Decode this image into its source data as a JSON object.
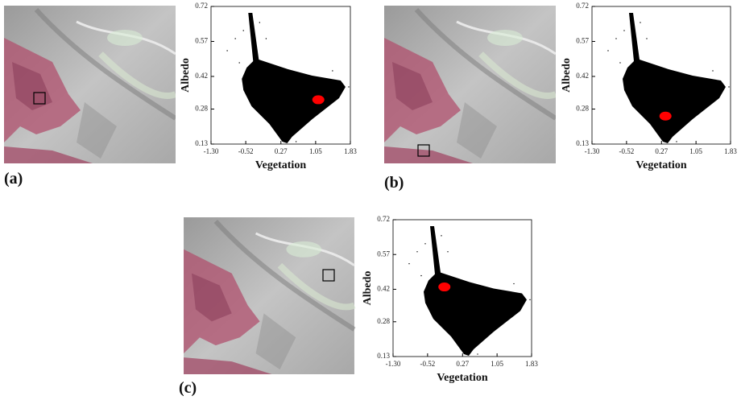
{
  "chart_data": [
    {
      "type": "scatter",
      "panel_label": "(a)",
      "xlabel": "Vegetation",
      "ylabel": "Albedo",
      "xlim": [
        -1.3,
        1.83
      ],
      "ylim": [
        0.13,
        0.72
      ],
      "xticks": [
        {
          "value": -1.3,
          "label": "-1.30"
        },
        {
          "value": -0.52,
          "label": "-0.52"
        },
        0.27,
        1.05,
        1.83
      ],
      "yticks": [
        0.13,
        0.28,
        0.42,
        0.57,
        0.72
      ],
      "series": [
        {
          "color": "#ff0000",
          "x": [
            1.11
          ],
          "values": [
            0.32
          ]
        }
      ]
    },
    {
      "type": "scatter",
      "panel_label": "(b)",
      "xlabel": "Vegetation",
      "ylabel": "Albedo",
      "xlim": [
        -1.3,
        1.83
      ],
      "ylim": [
        0.13,
        0.72
      ],
      "xticks": [
        {
          "value": -1.3,
          "label": "-1.30"
        },
        {
          "value": -0.52,
          "label": "-0.52"
        },
        0.27,
        1.05,
        1.83
      ],
      "yticks": [
        0.13,
        0.28,
        0.42,
        0.57,
        0.72
      ],
      "series": [
        {
          "color": "#ff0000",
          "x": [
            0.36
          ],
          "values": [
            0.25
          ]
        }
      ]
    },
    {
      "type": "scatter",
      "panel_label": "(c)",
      "xlabel": "Vegetation",
      "ylabel": "Albedo",
      "xlim": [
        -1.3,
        1.83
      ],
      "ylim": [
        0.13,
        0.72
      ],
      "xticks": [
        {
          "value": -1.3,
          "label": "-1.30"
        },
        {
          "value": -0.52,
          "label": "-0.52"
        },
        0.27,
        1.05,
        1.83
      ],
      "yticks": [
        0.13,
        0.28,
        0.42,
        0.57,
        0.72
      ],
      "series": [
        {
          "color": "#ff0000",
          "x": [
            -0.14
          ],
          "values": [
            0.43
          ]
        }
      ]
    }
  ]
}
